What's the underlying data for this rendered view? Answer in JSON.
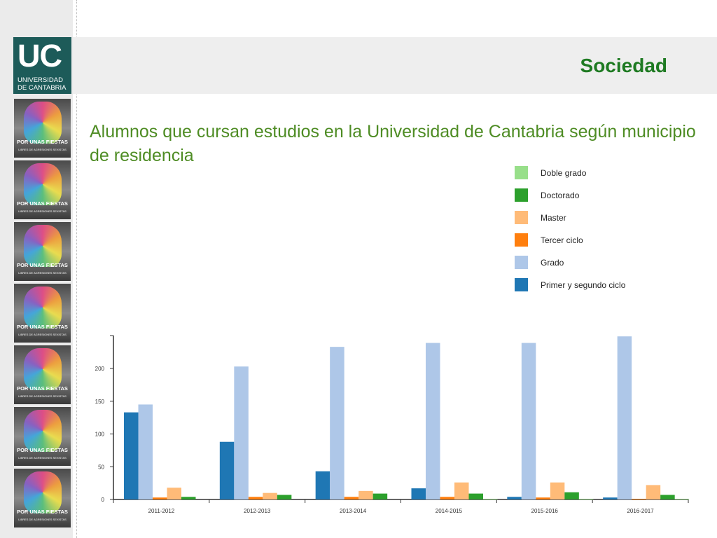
{
  "header": {
    "section_title": "Sociedad",
    "logo": {
      "mark": "UC",
      "line1": "UNIVERSIDAD",
      "line2": "DE CANTABRIA"
    }
  },
  "sidebar": {
    "posters": [
      {
        "text": "POR UNAS FIESTAS",
        "sub": "LIBRES DE AGRESIONES SEXISTAS"
      },
      {
        "text": "POR UNAS FIESTAS",
        "sub": "LIBRES DE AGRESIONES SEXISTAS"
      },
      {
        "text": "POR UNAS FIESTAS",
        "sub": "LIBRES DE AGRESIONES SEXISTAS"
      },
      {
        "text": "POR UNAS FIESTAS",
        "sub": "LIBRES DE AGRESIONES SEXISTAS"
      },
      {
        "text": "POR UNAS FIESTAS",
        "sub": "LIBRES DE AGRESIONES SEXISTAS"
      },
      {
        "text": "POR UNAS FIESTAS",
        "sub": "LIBRES DE AGRESIONES SEXISTAS"
      },
      {
        "text": "POR UNAS FIESTAS",
        "sub": "LIBRES DE AGRESIONES SEXISTAS"
      }
    ]
  },
  "slide": {
    "title": "Alumnos que cursan estudios en la Universidad de Cantabria según municipio de residencia"
  },
  "colors": {
    "title_green": "#4e8c24",
    "section_green": "#1e7a22",
    "logo_teal": "#1d5b59"
  },
  "chart_data": {
    "type": "bar",
    "title": "",
    "xlabel": "",
    "ylabel": "",
    "categories": [
      "2011-2012",
      "2012-2013",
      "2013-2014",
      "2014-2015",
      "2015-2016",
      "2016-2017"
    ],
    "ylim": [
      0,
      250
    ],
    "yticks": [
      0,
      50,
      100,
      150,
      200
    ],
    "legend_position": "top-right",
    "grid": false,
    "series": [
      {
        "name": "Primer y segundo ciclo",
        "color": "#1f77b4",
        "values": [
          133,
          88,
          43,
          17,
          4,
          3
        ]
      },
      {
        "name": "Grado",
        "color": "#aec7e8",
        "values": [
          145,
          203,
          233,
          239,
          239,
          249
        ]
      },
      {
        "name": "Tercer ciclo",
        "color": "#ff7f0e",
        "values": [
          3,
          4,
          4,
          4,
          3,
          1
        ]
      },
      {
        "name": "Master",
        "color": "#ffbb78",
        "values": [
          18,
          10,
          13,
          26,
          26,
          22
        ]
      },
      {
        "name": "Doctorado",
        "color": "#2ca02c",
        "values": [
          4,
          7,
          9,
          9,
          11,
          7
        ]
      },
      {
        "name": "Doble grado",
        "color": "#98df8a",
        "values": [
          0,
          0,
          0,
          1,
          1,
          1
        ]
      }
    ],
    "legend_order": [
      "Doble grado",
      "Doctorado",
      "Master",
      "Tercer ciclo",
      "Grado",
      "Primer y segundo ciclo"
    ]
  }
}
